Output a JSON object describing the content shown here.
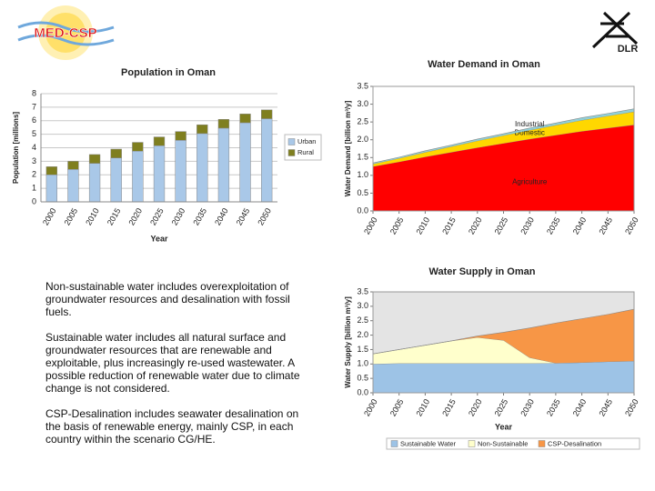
{
  "logos": {
    "left": "MED-CSP",
    "right": "DLR"
  },
  "paragraphs": [
    "Non-sustainable water includes overexploitation of groundwater resources and desalination with fossil fuels.",
    "Sustainable water includes all natural surface and groundwater resources that are renewable and exploitable, plus increasingly re-used wastewater. A possible reduction of renewable water due to climate change is not considered.",
    "CSP-Desalination includes seawater desalination on the basis of renewable energy, mainly CSP, in each country within the scenario CG/HE."
  ],
  "chart_data": [
    {
      "type": "bar",
      "title": "Population in Oman",
      "ylabel": "Population [millions]",
      "xlabel": "Year",
      "categories": [
        "2000",
        "2005",
        "2010",
        "2015",
        "2020",
        "2025",
        "2030",
        "2035",
        "2040",
        "2045",
        "2050"
      ],
      "series": [
        {
          "name": "Urban",
          "color": "#a9c8e8",
          "values": [
            2.0,
            2.4,
            2.85,
            3.25,
            3.75,
            4.15,
            4.55,
            5.05,
            5.45,
            5.85,
            6.15
          ]
        },
        {
          "name": "Rural",
          "color": "#7f7f1f",
          "values": [
            0.6,
            0.6,
            0.65,
            0.65,
            0.65,
            0.65,
            0.65,
            0.65,
            0.65,
            0.65,
            0.65
          ]
        }
      ],
      "ylim": [
        0,
        8
      ],
      "yticks": [
        0,
        1,
        2,
        3,
        4,
        5,
        6,
        7,
        8
      ],
      "grid": true,
      "legend": "right"
    },
    {
      "type": "area",
      "title": "Water Demand in Oman",
      "ylabel": "Water Demand [billion m³/y]",
      "x": [
        2000,
        2005,
        2010,
        2015,
        2020,
        2025,
        2030,
        2035,
        2040,
        2045,
        2050
      ],
      "series": [
        {
          "name": "Agriculture",
          "color": "#ff0000",
          "values": [
            1.25,
            1.38,
            1.52,
            1.65,
            1.78,
            1.9,
            2.02,
            2.13,
            2.24,
            2.33,
            2.42
          ]
        },
        {
          "name": "Domestic",
          "color": "#ffd700",
          "values": [
            0.07,
            0.1,
            0.13,
            0.16,
            0.19,
            0.22,
            0.25,
            0.28,
            0.31,
            0.34,
            0.37
          ]
        },
        {
          "name": "Industrial",
          "color": "#8fd0d8",
          "values": [
            0.03,
            0.03,
            0.04,
            0.04,
            0.05,
            0.05,
            0.06,
            0.06,
            0.07,
            0.07,
            0.08
          ]
        }
      ],
      "xlim": [
        2000,
        2050
      ],
      "xticks": [
        2000,
        2005,
        2010,
        2015,
        2020,
        2025,
        2030,
        2035,
        2040,
        2045,
        2050
      ],
      "ylim": [
        0,
        3.5
      ],
      "yticks": [
        {
          "value": 0,
          "label": "0.0"
        },
        0.5,
        {
          "value": 1,
          "label": "1.0"
        },
        1.5,
        {
          "value": 2,
          "label": "2.0"
        },
        2.5,
        {
          "value": 3,
          "label": "3.0"
        },
        3.5
      ],
      "grid": false,
      "background": "#ffffff",
      "legend": "inside"
    },
    {
      "type": "area",
      "title": "Water Supply in Oman",
      "ylabel": "Water Supply [billion m³/y]",
      "xlabel": "Year",
      "x": [
        2000,
        2005,
        2010,
        2015,
        2020,
        2025,
        2030,
        2035,
        2040,
        2045,
        2050
      ],
      "series": [
        {
          "name": "Sustainable Water",
          "color": "#9dc3e6",
          "values": [
            1.0,
            1.02,
            1.02,
            1.02,
            1.02,
            1.02,
            1.02,
            1.03,
            1.05,
            1.08,
            1.1
          ]
        },
        {
          "name": "Non-Sustainable",
          "color": "#ffffcc",
          "values": [
            0.35,
            0.48,
            0.63,
            0.78,
            0.9,
            0.8,
            0.2,
            0,
            0,
            0,
            0
          ]
        },
        {
          "name": "CSP-Desalination",
          "color": "#f79646",
          "values": [
            0,
            0,
            0,
            0,
            0.05,
            0.28,
            1.03,
            1.39,
            1.52,
            1.64,
            1.8
          ]
        }
      ],
      "xlim": [
        2000,
        2050
      ],
      "xticks": [
        2000,
        2005,
        2010,
        2015,
        2020,
        2025,
        2030,
        2035,
        2040,
        2045,
        2050
      ],
      "ylim": [
        0,
        3.5
      ],
      "yticks": [
        {
          "value": 0,
          "label": "0.0"
        },
        0.5,
        {
          "value": 1,
          "label": "1.0"
        },
        1.5,
        {
          "value": 2,
          "label": "2.0"
        },
        2.5,
        {
          "value": 3,
          "label": "3.0"
        },
        3.5
      ],
      "grid": false,
      "background": "#e4e4e4",
      "legend": "bottom"
    }
  ]
}
